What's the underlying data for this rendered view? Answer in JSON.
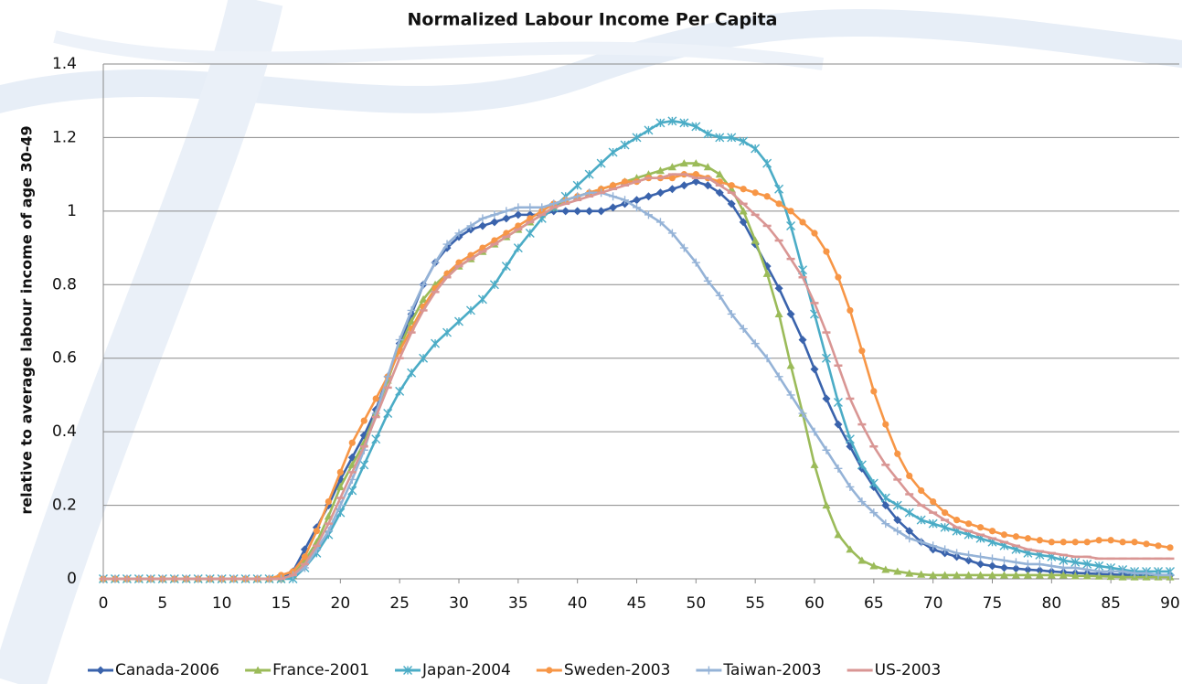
{
  "chart_data": {
    "type": "line",
    "title": "Normalized Labour Income Per Capita",
    "y_label": "relative to average labour income of age 30-49",
    "x": [
      0,
      1,
      2,
      3,
      4,
      5,
      6,
      7,
      8,
      9,
      10,
      11,
      12,
      13,
      14,
      15,
      16,
      17,
      18,
      19,
      20,
      21,
      22,
      23,
      24,
      25,
      26,
      27,
      28,
      29,
      30,
      31,
      32,
      33,
      34,
      35,
      36,
      37,
      38,
      39,
      40,
      41,
      42,
      43,
      44,
      45,
      46,
      47,
      48,
      49,
      50,
      51,
      52,
      53,
      54,
      55,
      56,
      57,
      58,
      59,
      60,
      61,
      62,
      63,
      64,
      65,
      66,
      67,
      68,
      69,
      70,
      71,
      72,
      73,
      74,
      75,
      76,
      77,
      78,
      79,
      80,
      81,
      82,
      83,
      84,
      85,
      86,
      87,
      88,
      89,
      90
    ],
    "xlim": [
      0,
      90
    ],
    "xticks": [
      0,
      5,
      10,
      15,
      20,
      25,
      30,
      35,
      40,
      45,
      50,
      55,
      60,
      65,
      70,
      75,
      80,
      85,
      90
    ],
    "ylim": [
      0,
      1.4
    ],
    "yticks": [
      0,
      0.2,
      0.4,
      0.6,
      0.8,
      1,
      1.2,
      1.4
    ],
    "grid": true,
    "legend": "bottom",
    "series": [
      {
        "name": "Canada-2006",
        "color": "#3a63ac",
        "marker": "diamond",
        "values": [
          0,
          0,
          0,
          0,
          0,
          0,
          0,
          0,
          0,
          0,
          0,
          0,
          0,
          0,
          0,
          0,
          0.02,
          0.08,
          0.14,
          0.2,
          0.27,
          0.33,
          0.39,
          0.46,
          0.55,
          0.64,
          0.72,
          0.8,
          0.86,
          0.9,
          0.93,
          0.95,
          0.96,
          0.97,
          0.98,
          0.99,
          0.99,
          0.99,
          1.0,
          1.0,
          1.0,
          1.0,
          1.0,
          1.01,
          1.02,
          1.03,
          1.04,
          1.05,
          1.06,
          1.07,
          1.08,
          1.07,
          1.05,
          1.02,
          0.97,
          0.91,
          0.85,
          0.79,
          0.72,
          0.65,
          0.57,
          0.49,
          0.42,
          0.36,
          0.3,
          0.25,
          0.2,
          0.16,
          0.13,
          0.1,
          0.08,
          0.07,
          0.06,
          0.05,
          0.04,
          0.035,
          0.03,
          0.028,
          0.025,
          0.023,
          0.02,
          0.018,
          0.016,
          0.015,
          0.013,
          0.012,
          0.011,
          0.01,
          0.01,
          0.01,
          0.01
        ]
      },
      {
        "name": "France-2001",
        "color": "#9bbb59",
        "marker": "triangle",
        "values": [
          0,
          0,
          0,
          0,
          0,
          0,
          0,
          0,
          0,
          0,
          0,
          0,
          0,
          0,
          0,
          0,
          0.01,
          0.05,
          0.1,
          0.17,
          0.25,
          0.31,
          0.37,
          0.45,
          0.54,
          0.63,
          0.7,
          0.76,
          0.8,
          0.83,
          0.85,
          0.87,
          0.89,
          0.91,
          0.93,
          0.95,
          0.97,
          0.99,
          1.01,
          1.03,
          1.04,
          1.05,
          1.06,
          1.07,
          1.08,
          1.09,
          1.1,
          1.11,
          1.12,
          1.13,
          1.13,
          1.12,
          1.1,
          1.06,
          1.0,
          0.92,
          0.83,
          0.72,
          0.58,
          0.45,
          0.31,
          0.2,
          0.12,
          0.08,
          0.05,
          0.035,
          0.025,
          0.02,
          0.015,
          0.012,
          0.01,
          0.01,
          0.01,
          0.01,
          0.01,
          0.01,
          0.01,
          0.01,
          0.01,
          0.01,
          0.01,
          0.01,
          0.008,
          0.008,
          0.007,
          0.006,
          0.005,
          0.005,
          0.005,
          0.005,
          0.005
        ]
      },
      {
        "name": "Japan-2004",
        "color": "#4bacc6",
        "marker": "star",
        "values": [
          0,
          0,
          0,
          0,
          0,
          0,
          0,
          0,
          0,
          0,
          0,
          0,
          0,
          0,
          0,
          0,
          0,
          0.03,
          0.07,
          0.12,
          0.18,
          0.24,
          0.31,
          0.38,
          0.45,
          0.51,
          0.56,
          0.6,
          0.64,
          0.67,
          0.7,
          0.73,
          0.76,
          0.8,
          0.85,
          0.9,
          0.94,
          0.98,
          1.01,
          1.04,
          1.07,
          1.1,
          1.13,
          1.16,
          1.18,
          1.2,
          1.22,
          1.24,
          1.245,
          1.24,
          1.23,
          1.21,
          1.2,
          1.2,
          1.19,
          1.17,
          1.13,
          1.06,
          0.96,
          0.84,
          0.72,
          0.6,
          0.48,
          0.38,
          0.31,
          0.26,
          0.22,
          0.2,
          0.18,
          0.16,
          0.15,
          0.14,
          0.13,
          0.12,
          0.11,
          0.1,
          0.09,
          0.08,
          0.07,
          0.065,
          0.06,
          0.05,
          0.045,
          0.04,
          0.035,
          0.03,
          0.025,
          0.02,
          0.02,
          0.02,
          0.02
        ]
      },
      {
        "name": "Sweden-2003",
        "color": "#f79646",
        "marker": "circle",
        "values": [
          0,
          0,
          0,
          0,
          0,
          0,
          0,
          0,
          0,
          0,
          0,
          0,
          0,
          0,
          0,
          0.01,
          0.02,
          0.06,
          0.13,
          0.21,
          0.29,
          0.37,
          0.43,
          0.49,
          0.55,
          0.62,
          0.68,
          0.74,
          0.79,
          0.83,
          0.86,
          0.88,
          0.9,
          0.92,
          0.94,
          0.96,
          0.98,
          1.0,
          1.02,
          1.03,
          1.04,
          1.05,
          1.06,
          1.07,
          1.08,
          1.08,
          1.09,
          1.09,
          1.09,
          1.1,
          1.1,
          1.09,
          1.08,
          1.07,
          1.06,
          1.05,
          1.04,
          1.02,
          1.0,
          0.97,
          0.94,
          0.89,
          0.82,
          0.73,
          0.62,
          0.51,
          0.42,
          0.34,
          0.28,
          0.24,
          0.21,
          0.18,
          0.16,
          0.15,
          0.14,
          0.13,
          0.12,
          0.115,
          0.11,
          0.105,
          0.1,
          0.1,
          0.1,
          0.1,
          0.105,
          0.105,
          0.1,
          0.1,
          0.095,
          0.09,
          0.085
        ]
      },
      {
        "name": "Taiwan-2003",
        "color": "#95b3d7",
        "marker": "plus",
        "values": [
          0,
          0,
          0,
          0,
          0,
          0,
          0,
          0,
          0,
          0,
          0,
          0,
          0,
          0,
          0,
          0,
          0.01,
          0.03,
          0.08,
          0.13,
          0.2,
          0.27,
          0.35,
          0.45,
          0.55,
          0.65,
          0.73,
          0.8,
          0.86,
          0.91,
          0.94,
          0.96,
          0.98,
          0.99,
          1.0,
          1.01,
          1.01,
          1.01,
          1.02,
          1.03,
          1.04,
          1.05,
          1.05,
          1.04,
          1.03,
          1.01,
          0.99,
          0.97,
          0.94,
          0.9,
          0.86,
          0.81,
          0.77,
          0.72,
          0.68,
          0.64,
          0.6,
          0.55,
          0.5,
          0.45,
          0.4,
          0.35,
          0.3,
          0.25,
          0.21,
          0.18,
          0.15,
          0.13,
          0.11,
          0.1,
          0.09,
          0.08,
          0.07,
          0.065,
          0.06,
          0.055,
          0.05,
          0.045,
          0.04,
          0.04,
          0.035,
          0.03,
          0.03,
          0.025,
          0.02,
          0.02,
          0.02,
          0.015,
          0.015,
          0.01,
          0.01
        ]
      },
      {
        "name": "US-2003",
        "color": "#d99694",
        "marker": "dash",
        "values": [
          0,
          0,
          0,
          0,
          0,
          0,
          0,
          0,
          0,
          0,
          0,
          0,
          0,
          0,
          0,
          0,
          0.01,
          0.04,
          0.09,
          0.15,
          0.22,
          0.29,
          0.36,
          0.44,
          0.52,
          0.6,
          0.67,
          0.73,
          0.78,
          0.82,
          0.85,
          0.87,
          0.89,
          0.91,
          0.93,
          0.95,
          0.97,
          0.99,
          1.01,
          1.02,
          1.03,
          1.04,
          1.05,
          1.06,
          1.07,
          1.08,
          1.09,
          1.09,
          1.1,
          1.1,
          1.09,
          1.09,
          1.07,
          1.05,
          1.02,
          0.99,
          0.96,
          0.92,
          0.87,
          0.82,
          0.75,
          0.67,
          0.58,
          0.49,
          0.42,
          0.36,
          0.31,
          0.27,
          0.23,
          0.2,
          0.18,
          0.16,
          0.14,
          0.13,
          0.12,
          0.11,
          0.1,
          0.09,
          0.08,
          0.075,
          0.07,
          0.065,
          0.06,
          0.06,
          0.055,
          0.055,
          0.055,
          0.055,
          0.055,
          0.055,
          0.055
        ]
      }
    ]
  }
}
